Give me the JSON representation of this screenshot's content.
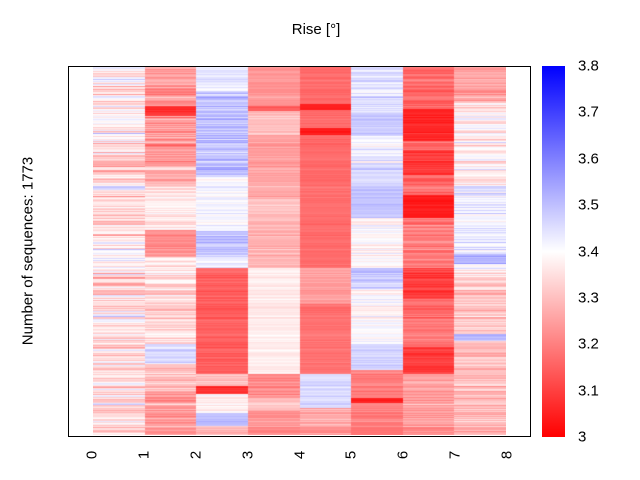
{
  "title": "Rise [°]",
  "y_axis_label": "Number of sequences: 1773",
  "x_ticks": [
    "0",
    "1",
    "2",
    "3",
    "4",
    "5",
    "6",
    "7",
    "8"
  ],
  "colorbar": {
    "ticks": [
      "3.8",
      "3.7",
      "3.6",
      "3.5",
      "3.4",
      "3.3",
      "3.2",
      "3.1",
      "3"
    ],
    "min": 3.0,
    "max": 3.8,
    "color_low": "#ff0000",
    "color_mid": "#ffffff",
    "color_high": "#0000ff"
  },
  "chart_data": {
    "type": "heatmap",
    "title": "Rise [°]",
    "ylabel": "Number of sequences: 1773",
    "n_rows": 1773,
    "n_cols": 8,
    "x_tick_labels": [
      0,
      1,
      2,
      3,
      4,
      5,
      6,
      7,
      8
    ],
    "value_range": [
      3.0,
      3.8
    ],
    "colormap": "red-white-blue (3.0=red, 3.4=white, 3.8=blue)",
    "colorbar_ticks": [
      3,
      3.1,
      3.2,
      3.3,
      3.4,
      3.5,
      3.6,
      3.7,
      3.8
    ],
    "grid": false,
    "legend_position": "colorbar-right",
    "band_format": "[row_fraction_start, row_fraction_end, mean_value_deg, stripe_noise_amplitude]",
    "render_seed": 42,
    "noise_row_weight": 0.75,
    "noise_cell_weight": 0.5,
    "columns": [
      {
        "bands": [
          [
            0,
            0.24,
            3.38,
            0.14
          ],
          [
            0.24,
            0.285,
            3.29,
            0.1
          ],
          [
            0.285,
            0.334,
            3.37,
            0.12
          ],
          [
            0.334,
            0.47,
            3.33,
            0.11
          ],
          [
            0.47,
            0.545,
            3.38,
            0.12
          ],
          [
            0.545,
            0.63,
            3.33,
            0.12
          ],
          [
            0.63,
            0.7,
            3.37,
            0.13
          ],
          [
            0.7,
            0.82,
            3.34,
            0.12
          ],
          [
            0.82,
            1,
            3.36,
            0.12
          ]
        ]
      },
      {
        "bands": [
          [
            0,
            0.105,
            3.26,
            0.09
          ],
          [
            0.105,
            0.132,
            3.08,
            0.04
          ],
          [
            0.132,
            0.27,
            3.24,
            0.09
          ],
          [
            0.27,
            0.334,
            3.3,
            0.08
          ],
          [
            0.334,
            0.442,
            3.36,
            0.06
          ],
          [
            0.442,
            0.517,
            3.22,
            0.05
          ],
          [
            0.517,
            0.63,
            3.35,
            0.08
          ],
          [
            0.63,
            0.752,
            3.33,
            0.08
          ],
          [
            0.752,
            0.806,
            3.46,
            0.05
          ],
          [
            0.806,
            0.88,
            3.3,
            0.08
          ],
          [
            0.88,
            1,
            3.25,
            0.09
          ]
        ]
      },
      {
        "bands": [
          [
            0,
            0.065,
            3.44,
            0.06
          ],
          [
            0.065,
            0.3,
            3.5,
            0.08
          ],
          [
            0.3,
            0.447,
            3.41,
            0.05
          ],
          [
            0.447,
            0.517,
            3.5,
            0.06
          ],
          [
            0.517,
            0.545,
            3.42,
            0.05
          ],
          [
            0.545,
            0.833,
            3.15,
            0.04
          ],
          [
            0.833,
            0.867,
            3.3,
            0.06
          ],
          [
            0.867,
            0.888,
            3.08,
            0.03
          ],
          [
            0.888,
            0.94,
            3.38,
            0.06
          ],
          [
            0.94,
            0.975,
            3.5,
            0.05
          ],
          [
            0.975,
            1,
            3.3,
            0.05
          ]
        ]
      },
      {
        "bands": [
          [
            0,
            0.105,
            3.24,
            0.04
          ],
          [
            0.105,
            0.12,
            3.15,
            0.03
          ],
          [
            0.12,
            0.186,
            3.3,
            0.05
          ],
          [
            0.186,
            0.28,
            3.25,
            0.04
          ],
          [
            0.28,
            0.36,
            3.27,
            0.04
          ],
          [
            0.36,
            0.428,
            3.3,
            0.04
          ],
          [
            0.428,
            0.545,
            3.28,
            0.05
          ],
          [
            0.545,
            0.833,
            3.37,
            0.03
          ],
          [
            0.833,
            0.9,
            3.22,
            0.05
          ],
          [
            0.9,
            0.935,
            3.3,
            0.05
          ],
          [
            0.935,
            1,
            3.24,
            0.05
          ]
        ]
      },
      {
        "bands": [
          [
            0,
            0.1,
            3.17,
            0.03
          ],
          [
            0.1,
            0.118,
            3.05,
            0.02
          ],
          [
            0.118,
            0.165,
            3.17,
            0.03
          ],
          [
            0.165,
            0.185,
            3.04,
            0.02
          ],
          [
            0.185,
            0.545,
            3.17,
            0.025
          ],
          [
            0.545,
            0.644,
            3.25,
            0.03
          ],
          [
            0.644,
            0.833,
            3.18,
            0.025
          ],
          [
            0.833,
            0.927,
            3.46,
            0.04
          ],
          [
            0.927,
            1,
            3.27,
            0.08
          ]
        ]
      },
      {
        "bands": [
          [
            0,
            0.124,
            3.45,
            0.07
          ],
          [
            0.124,
            0.186,
            3.48,
            0.04
          ],
          [
            0.186,
            0.26,
            3.43,
            0.07
          ],
          [
            0.26,
            0.334,
            3.47,
            0.05
          ],
          [
            0.334,
            0.41,
            3.49,
            0.03
          ],
          [
            0.41,
            0.545,
            3.39,
            0.06
          ],
          [
            0.545,
            0.604,
            3.48,
            0.06
          ],
          [
            0.604,
            0.752,
            3.4,
            0.06
          ],
          [
            0.752,
            0.824,
            3.47,
            0.03
          ],
          [
            0.824,
            0.9,
            3.2,
            0.05
          ],
          [
            0.9,
            0.912,
            3.05,
            0.02
          ],
          [
            0.912,
            1,
            3.2,
            0.06
          ]
        ]
      },
      {
        "bands": [
          [
            0,
            0.113,
            3.17,
            0.06
          ],
          [
            0.113,
            0.2,
            3.06,
            0.04
          ],
          [
            0.2,
            0.226,
            3.16,
            0.06
          ],
          [
            0.226,
            0.294,
            3.09,
            0.05
          ],
          [
            0.294,
            0.348,
            3.17,
            0.06
          ],
          [
            0.348,
            0.41,
            3.04,
            0.03
          ],
          [
            0.41,
            0.545,
            3.2,
            0.07
          ],
          [
            0.545,
            0.63,
            3.1,
            0.05
          ],
          [
            0.63,
            0.76,
            3.18,
            0.06
          ],
          [
            0.76,
            0.833,
            3.09,
            0.04
          ],
          [
            0.833,
            1,
            3.25,
            0.07
          ]
        ]
      },
      {
        "bands": [
          [
            0,
            0.092,
            3.26,
            0.06
          ],
          [
            0.092,
            0.32,
            3.38,
            0.1
          ],
          [
            0.32,
            0.509,
            3.43,
            0.08
          ],
          [
            0.509,
            0.536,
            3.53,
            0.06
          ],
          [
            0.536,
            0.55,
            3.42,
            0.06
          ],
          [
            0.55,
            0.725,
            3.32,
            0.09
          ],
          [
            0.725,
            0.745,
            3.5,
            0.05
          ],
          [
            0.745,
            1,
            3.3,
            0.09
          ]
        ]
      }
    ]
  }
}
